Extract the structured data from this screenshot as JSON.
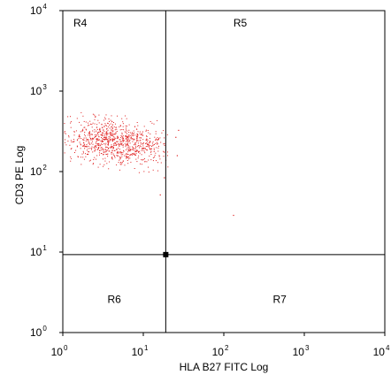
{
  "chart_data": {
    "type": "scatter",
    "title": "",
    "xlabel": "HLA B27 FITC Log",
    "ylabel": "CD3 PE Log",
    "xscale": "log",
    "yscale": "log",
    "xlim": [
      1,
      10000
    ],
    "ylim": [
      1,
      10000
    ],
    "xticks": [
      {
        "base": "10",
        "exp": "0"
      },
      {
        "base": "10",
        "exp": "1"
      },
      {
        "base": "10",
        "exp": "2"
      },
      {
        "base": "10",
        "exp": "3"
      },
      {
        "base": "10",
        "exp": "4"
      }
    ],
    "yticks": [
      {
        "base": "10",
        "exp": "0"
      },
      {
        "base": "10",
        "exp": "1"
      },
      {
        "base": "10",
        "exp": "2"
      },
      {
        "base": "10",
        "exp": "3"
      },
      {
        "base": "10",
        "exp": "4"
      }
    ],
    "gate": {
      "x": 19,
      "y": 9.3
    },
    "regions": [
      {
        "label": "R4",
        "position": "top-left"
      },
      {
        "label": "R5",
        "position": "top-right"
      },
      {
        "label": "R6",
        "position": "bottom-left"
      },
      {
        "label": "R7",
        "position": "bottom-right"
      }
    ],
    "point_color": "#e02020",
    "cluster": {
      "center_x": 4.5,
      "center_y": 240,
      "x_range": [
        1,
        20
      ],
      "y_range": [
        80,
        600
      ],
      "approx_events": 900
    },
    "outliers": [
      {
        "x": 25,
        "y": 270
      },
      {
        "x": 27,
        "y": 330
      },
      {
        "x": 26,
        "y": 160
      },
      {
        "x": 130,
        "y": 29
      },
      {
        "x": 16,
        "y": 52
      },
      {
        "x": 18,
        "y": 85
      }
    ]
  }
}
